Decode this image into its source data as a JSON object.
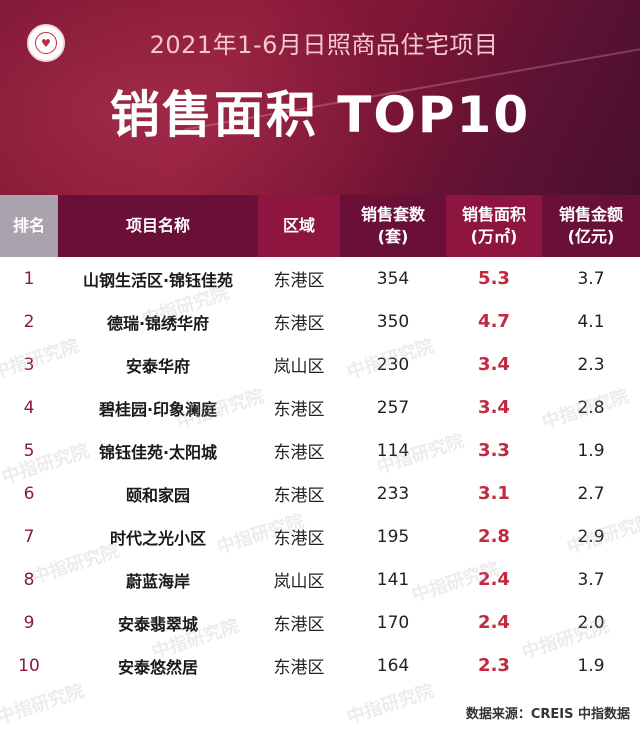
{
  "header": {
    "subtitle": "2021年1-6月日照商品住宅项目",
    "title": "销售面积 TOP10"
  },
  "table": {
    "columns": [
      "排名",
      "项目名称",
      "区域",
      "销售套数\n(套)",
      "销售面积\n(万㎡)",
      "销售金额\n(亿元)"
    ],
    "rows": [
      {
        "rank": "1",
        "name": "山钢生活区·锦钰佳苑",
        "district": "东港区",
        "units": "354",
        "area": "5.3",
        "amount": "3.7"
      },
      {
        "rank": "2",
        "name": "德瑞·锦绣华府",
        "district": "东港区",
        "units": "350",
        "area": "4.7",
        "amount": "4.1"
      },
      {
        "rank": "3",
        "name": "安泰华府",
        "district": "岚山区",
        "units": "230",
        "area": "3.4",
        "amount": "2.3"
      },
      {
        "rank": "4",
        "name": "碧桂园·印象澜庭",
        "district": "东港区",
        "units": "257",
        "area": "3.4",
        "amount": "2.8"
      },
      {
        "rank": "5",
        "name": "锦钰佳苑·太阳城",
        "district": "东港区",
        "units": "114",
        "area": "3.3",
        "amount": "1.9"
      },
      {
        "rank": "6",
        "name": "颐和家园",
        "district": "东港区",
        "units": "233",
        "area": "3.1",
        "amount": "2.7"
      },
      {
        "rank": "7",
        "name": "时代之光小区",
        "district": "东港区",
        "units": "195",
        "area": "2.8",
        "amount": "2.9"
      },
      {
        "rank": "8",
        "name": "蔚蓝海岸",
        "district": "岚山区",
        "units": "141",
        "area": "2.4",
        "amount": "3.7"
      },
      {
        "rank": "9",
        "name": "安泰翡翠城",
        "district": "东港区",
        "units": "170",
        "area": "2.4",
        "amount": "2.0"
      },
      {
        "rank": "10",
        "name": "安泰悠然居",
        "district": "东港区",
        "units": "164",
        "area": "2.3",
        "amount": "1.9"
      }
    ]
  },
  "watermark": "中指研究院",
  "source": "数据来源：CREIS 中指数据",
  "colors": {
    "banner": "#7d1533",
    "header_dark": "#6a1038",
    "header_light": "#8d1540",
    "accent": "#c2283f"
  }
}
